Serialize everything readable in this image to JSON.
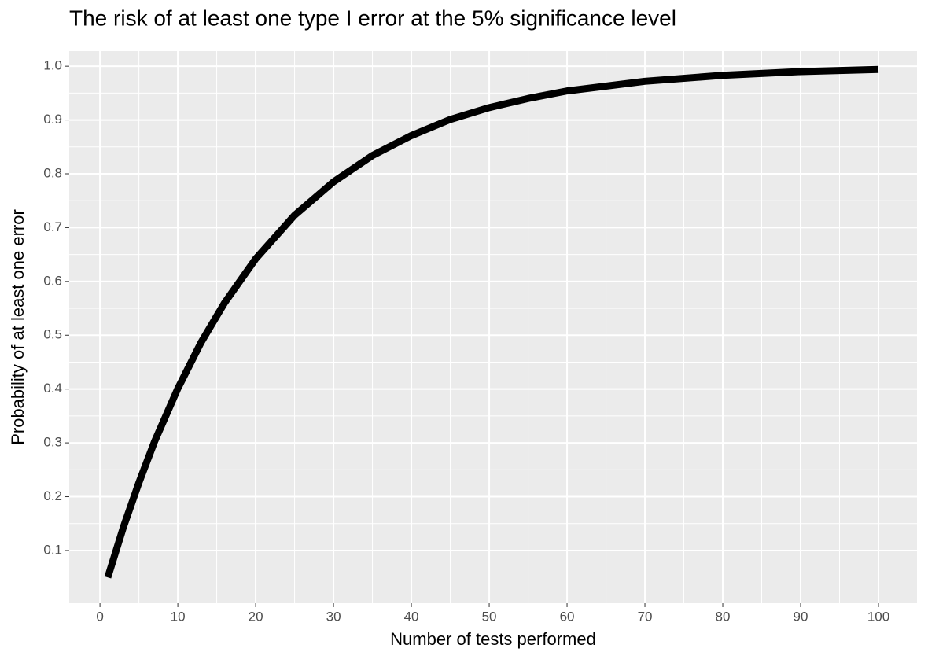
{
  "chart_data": {
    "type": "line",
    "title": "The risk of at least one type I error at the 5% significance level",
    "x_label": "Number of tests performed",
    "y_label": "Probability of at least one error",
    "x": [
      1,
      3,
      5,
      7,
      10,
      13,
      16,
      20,
      25,
      30,
      35,
      40,
      45,
      50,
      55,
      60,
      70,
      80,
      90,
      100
    ],
    "values": [
      0.05,
      0.143,
      0.226,
      0.302,
      0.401,
      0.487,
      0.56,
      0.642,
      0.723,
      0.785,
      0.834,
      0.871,
      0.901,
      0.923,
      0.94,
      0.954,
      0.972,
      0.983,
      0.99,
      0.994
    ],
    "color": "#000000",
    "xlim": [
      -3.95,
      104.95
    ],
    "ylim": [
      0.002,
      1.028
    ],
    "xticks": [
      0,
      10,
      20,
      30,
      40,
      50,
      60,
      70,
      80,
      90,
      100
    ],
    "yticks": [
      0.1,
      0.2,
      0.3,
      0.4,
      0.5,
      0.6,
      0.7,
      0.8,
      0.9,
      {
        "value": 1.0,
        "label": "1.0"
      }
    ],
    "grid": true
  }
}
